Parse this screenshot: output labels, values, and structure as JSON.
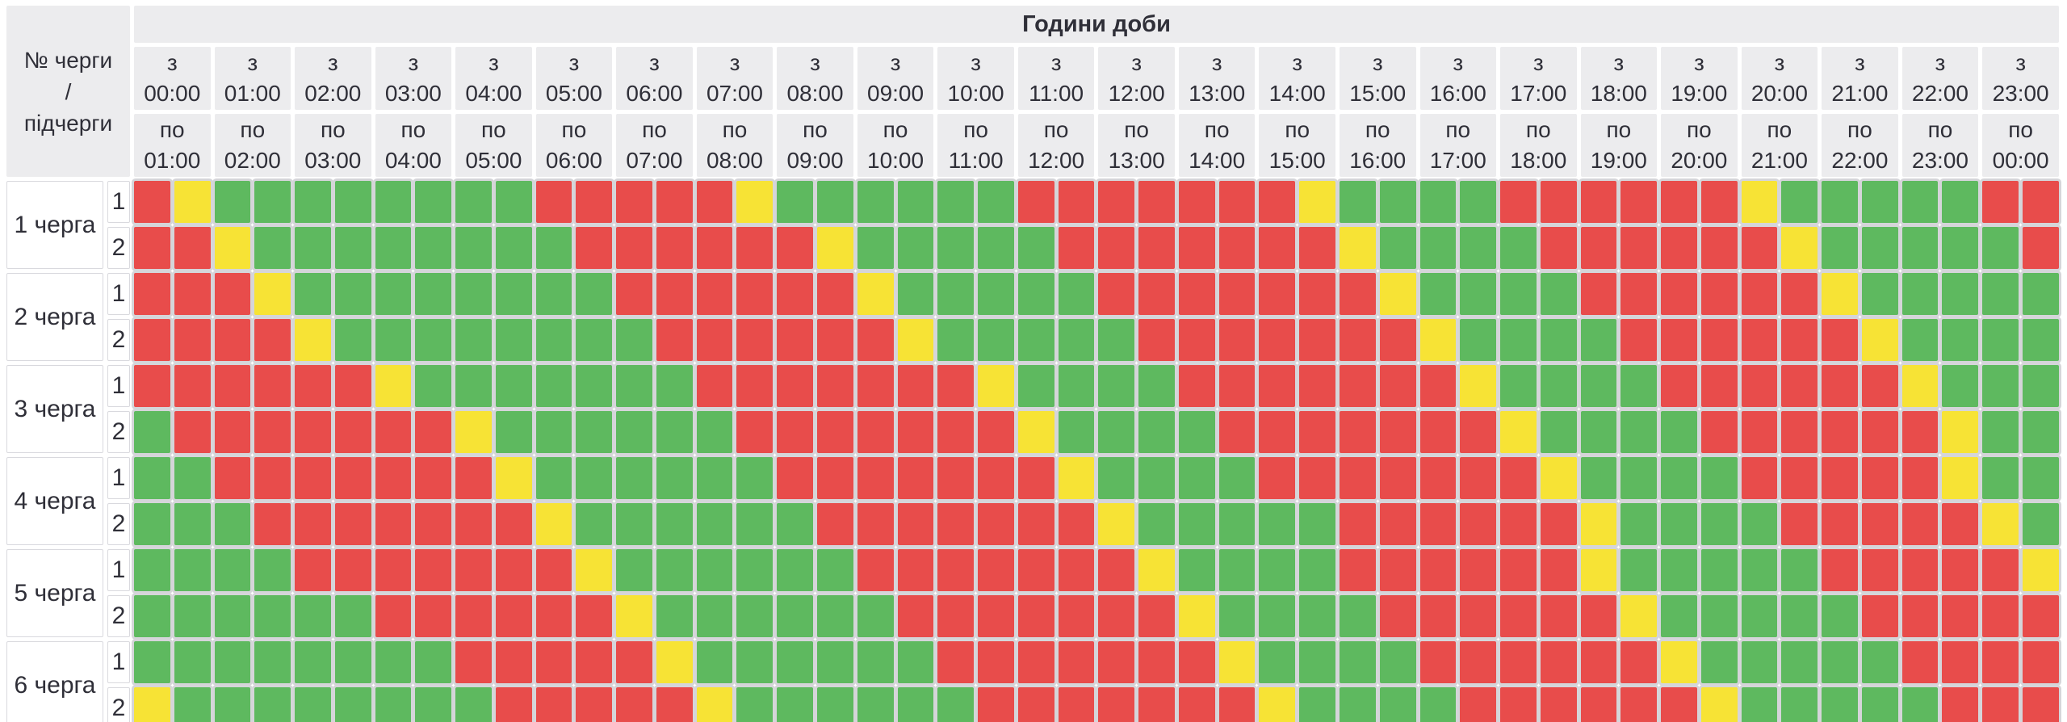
{
  "header": {
    "corner_label": "№ черги\n/\nпідчерги",
    "title": "Години доби",
    "from_prefix": "з",
    "to_prefix": "по"
  },
  "colors": {
    "outage_red": "#e84c4b",
    "power_green": "#5eb95f",
    "possible_yellow": "#f7e335",
    "header_bg": "#ececee",
    "cell_gap_gray": "#d5d5d9",
    "label_cell_bg": "#ffffff",
    "label_cell_border": "#d9d9de",
    "text": "#2f2f38",
    "page_bg": "#ffffff"
  },
  "chart_data": {
    "type": "heatmap",
    "title": "Години доби",
    "slots_per_hour_column": 2,
    "slot_duration_minutes": 30,
    "palette": {
      "R": "red",
      "G": "green",
      "Y": "yellow"
    },
    "columns": [
      {
        "from": "00:00",
        "to": "01:00"
      },
      {
        "from": "01:00",
        "to": "02:00"
      },
      {
        "from": "02:00",
        "to": "03:00"
      },
      {
        "from": "03:00",
        "to": "04:00"
      },
      {
        "from": "04:00",
        "to": "05:00"
      },
      {
        "from": "05:00",
        "to": "06:00"
      },
      {
        "from": "06:00",
        "to": "07:00"
      },
      {
        "from": "07:00",
        "to": "08:00"
      },
      {
        "from": "08:00",
        "to": "09:00"
      },
      {
        "from": "09:00",
        "to": "10:00"
      },
      {
        "from": "10:00",
        "to": "11:00"
      },
      {
        "from": "11:00",
        "to": "12:00"
      },
      {
        "from": "12:00",
        "to": "13:00"
      },
      {
        "from": "13:00",
        "to": "14:00"
      },
      {
        "from": "14:00",
        "to": "15:00"
      },
      {
        "from": "15:00",
        "to": "16:00"
      },
      {
        "from": "16:00",
        "to": "17:00"
      },
      {
        "from": "17:00",
        "to": "18:00"
      },
      {
        "from": "18:00",
        "to": "19:00"
      },
      {
        "from": "19:00",
        "to": "20:00"
      },
      {
        "from": "20:00",
        "to": "21:00"
      },
      {
        "from": "21:00",
        "to": "22:00"
      },
      {
        "from": "22:00",
        "to": "23:00"
      },
      {
        "from": "23:00",
        "to": "00:00"
      }
    ],
    "rows": [
      {
        "queue": "1 черга",
        "subqueue": "1",
        "slots": "RYGGGGGGGGRRRRRYGGGGGGRRRRRRRYGGGGRRRRRRYGGGGGRR"
      },
      {
        "queue": "1 черга",
        "subqueue": "2",
        "slots": "RRYGGGGGGGGRRRRRRYGGGGGRRRRRRRYGGGGRRRRRRYGGGGGR"
      },
      {
        "queue": "2 черга",
        "subqueue": "1",
        "slots": "RRRYGGGGGGGGRRRRRRYGGGGGRRRRRRRYGGGGRRRRRRYGGGGG"
      },
      {
        "queue": "2 черга",
        "subqueue": "2",
        "slots": "RRRRYGGGGGGGGRRRRRRYGGGGGRRRRRRRYGGGGRRRRRRYGGGG"
      },
      {
        "queue": "3 черга",
        "subqueue": "1",
        "slots": "RRRRRRYGGGGGGGRRRRRRRYGGGGRRRRRRRYGGGGRRRRRRYGGG"
      },
      {
        "queue": "3 черга",
        "subqueue": "2",
        "slots": "GRRRRRRRYGGGGGGRRRRRRRYGGGGRRRRRRRYGGGGRRRRRRYGG"
      },
      {
        "queue": "4 черга",
        "subqueue": "1",
        "slots": "GGRRRRRRRYGGGGGGRRRRRRRYGGGGRRRRRRRYGGGGRRRRRYGG"
      },
      {
        "queue": "4 черга",
        "subqueue": "2",
        "slots": "GGGRRRRRRRYGGGGGGRRRRRRRYGGGGGRRRRRRYGGGGRRRRRYG"
      },
      {
        "queue": "5 черга",
        "subqueue": "1",
        "slots": "GGGGRRRRRRRYGGGGGGRRRRRRRYGGGGRRRRRRYGGGGGRRRRRY"
      },
      {
        "queue": "5 черга",
        "subqueue": "2",
        "slots": "GGGGGGRRRRRRYGGGGGGRRRRRRRYGGGGRRRRRRYGGGGGRRRRR"
      },
      {
        "queue": "6 черга",
        "subqueue": "1",
        "slots": "GGGGGGGGRRRRRYGGGGGGRRRRRRRYGGGGRRRRRRYGGGGGRRRR"
      },
      {
        "queue": "6 черга",
        "subqueue": "2",
        "slots": "YGGGGGGGGRRRRRYGGGGGGRRRRRRRYGGGGRRRRRRYGGGGGRRR"
      }
    ]
  }
}
